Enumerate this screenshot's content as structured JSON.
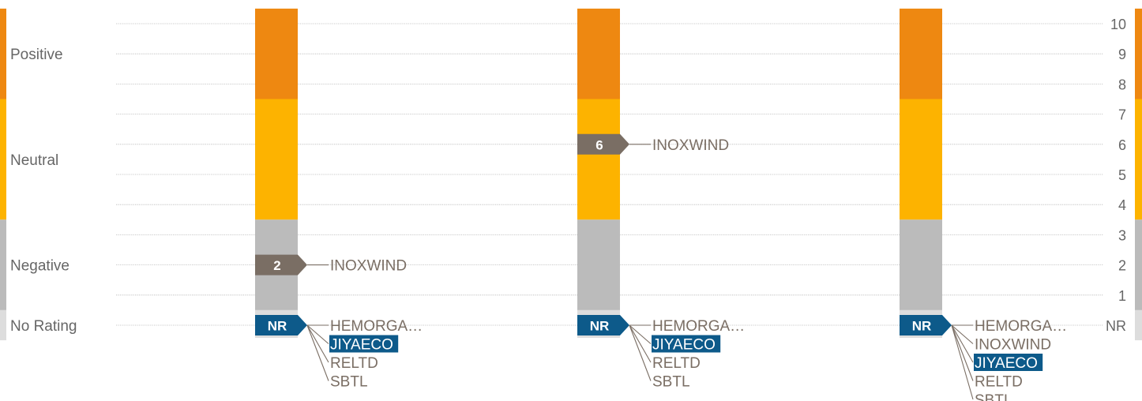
{
  "chart_data": {
    "type": "bar",
    "y_scale": [
      "NR",
      "1",
      "2",
      "3",
      "4",
      "5",
      "6",
      "7",
      "8",
      "9",
      "10"
    ],
    "bands": [
      {
        "label": "Positive",
        "from": 7.5,
        "to": 10.5,
        "color": "#EE8811"
      },
      {
        "label": "Neutral",
        "from": 3.5,
        "to": 7.5,
        "color": "#FDB300"
      },
      {
        "label": "Negative",
        "from": 0.5,
        "to": 3.5,
        "color": "#BBBBBB"
      },
      {
        "label": "No Rating",
        "from": -0.5,
        "to": 0.5,
        "color": "#DDDDDD"
      }
    ],
    "grid": true,
    "columns": [
      {
        "markers": [
          {
            "label": "2",
            "value": 2,
            "color": "#7A6E64",
            "companies": [
              "INOXWIND"
            ]
          },
          {
            "label": "NR",
            "value": 0,
            "color": "#0D5A8A",
            "companies": [
              "HEMORGA…",
              "JIYAECO",
              "RELTD",
              "SBTL"
            ],
            "highlight": "JIYAECO"
          }
        ]
      },
      {
        "markers": [
          {
            "label": "6",
            "value": 6,
            "color": "#7A6E64",
            "companies": [
              "INOXWIND"
            ]
          },
          {
            "label": "NR",
            "value": 0,
            "color": "#0D5A8A",
            "companies": [
              "HEMORGA…",
              "JIYAECO",
              "RELTD",
              "SBTL"
            ],
            "highlight": "JIYAECO"
          }
        ]
      },
      {
        "markers": [
          {
            "label": "NR",
            "value": 0,
            "color": "#0D5A8A",
            "companies": [
              "HEMORGA…",
              "INOXWIND",
              "JIYAECO",
              "RELTD",
              "SBTL"
            ],
            "highlight": "JIYAECO"
          }
        ]
      }
    ]
  }
}
